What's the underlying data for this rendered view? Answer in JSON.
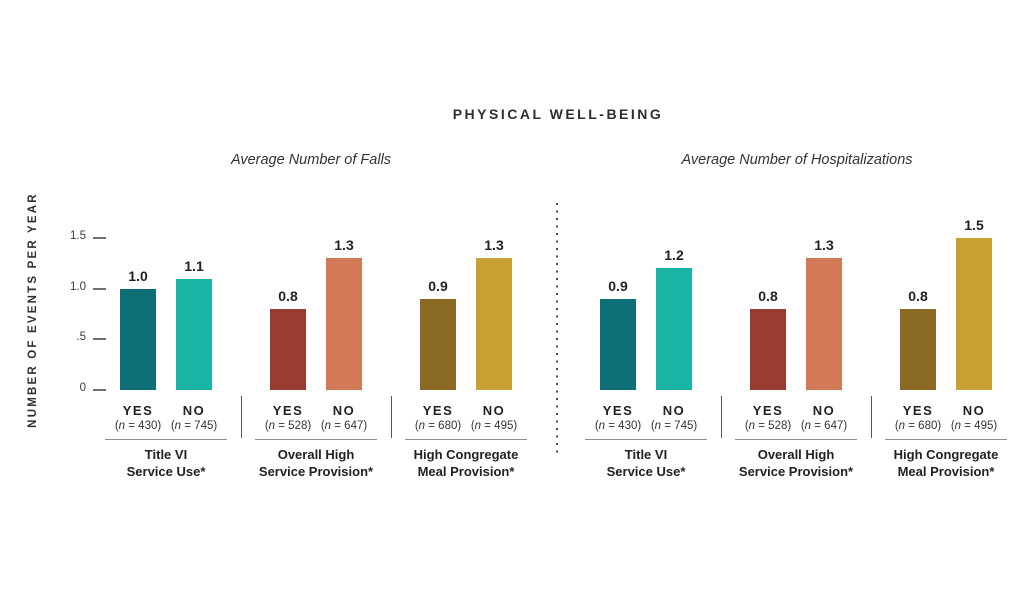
{
  "title": "PHYSICAL WELL-BEING",
  "y_axis": {
    "label": "NUMBER OF EVENTS PER YEAR",
    "ylim": [
      0,
      1.5
    ],
    "ticks": [
      {
        "label": "1.5",
        "value": 1.5
      },
      {
        "label": "1.0",
        "value": 1.0
      },
      {
        "label": ".5",
        "value": 0.5
      },
      {
        "label": "0",
        "value": 0
      }
    ]
  },
  "chart_data": [
    {
      "type": "bar",
      "title": "Average Number of Falls",
      "ylabel": "NUMBER OF EVENTS PER YEAR",
      "ylim": [
        0,
        1.5
      ],
      "grid": false,
      "categories": [
        "Title VI Service Use*",
        "Overall High Service Provision*",
        "High Congregate Meal Provision*"
      ],
      "series": [
        {
          "name": "YES",
          "values": [
            1.0,
            0.8,
            0.9
          ]
        },
        {
          "name": "NO",
          "values": [
            1.1,
            1.3,
            1.3
          ]
        }
      ],
      "groups": [
        {
          "name_lines": [
            "Title VI",
            "Service Use*"
          ],
          "bars": [
            {
              "label": "YES",
              "n_label": "(n = 430)",
              "value": 1.0,
              "value_label": "1.0",
              "color": "#0e7076"
            },
            {
              "label": "NO",
              "n_label": "(n = 745)",
              "value": 1.1,
              "value_label": "1.1",
              "color": "#1ab3a4"
            }
          ]
        },
        {
          "name_lines": [
            "Overall High",
            "Service Provision*"
          ],
          "bars": [
            {
              "label": "YES",
              "n_label": "(n = 528)",
              "value": 0.8,
              "value_label": "0.8",
              "color": "#9a3c31"
            },
            {
              "label": "NO",
              "n_label": "(n = 647)",
              "value": 1.3,
              "value_label": "1.3",
              "color": "#d17a55"
            }
          ]
        },
        {
          "name_lines": [
            "High Congregate",
            "Meal Provision*"
          ],
          "bars": [
            {
              "label": "YES",
              "n_label": "(n = 680)",
              "value": 0.9,
              "value_label": "0.9",
              "color": "#8a6a24"
            },
            {
              "label": "NO",
              "n_label": "(n = 495)",
              "value": 1.3,
              "value_label": "1.3",
              "color": "#c89f33"
            }
          ]
        }
      ]
    },
    {
      "type": "bar",
      "title": "Average Number of Hospitalizations",
      "ylabel": "NUMBER OF EVENTS PER YEAR",
      "ylim": [
        0,
        1.5
      ],
      "grid": false,
      "categories": [
        "Title VI Service Use*",
        "Overall High Service Provision*",
        "High Congregate Meal Provision*"
      ],
      "series": [
        {
          "name": "YES",
          "values": [
            0.9,
            0.8,
            0.8
          ]
        },
        {
          "name": "NO",
          "values": [
            1.2,
            1.3,
            1.5
          ]
        }
      ],
      "groups": [
        {
          "name_lines": [
            "Title VI",
            "Service Use*"
          ],
          "bars": [
            {
              "label": "YES",
              "n_label": "(n = 430)",
              "value": 0.9,
              "value_label": "0.9",
              "color": "#0e7076"
            },
            {
              "label": "NO",
              "n_label": "(n = 745)",
              "value": 1.2,
              "value_label": "1.2",
              "color": "#1ab3a4"
            }
          ]
        },
        {
          "name_lines": [
            "Overall High",
            "Service Provision*"
          ],
          "bars": [
            {
              "label": "YES",
              "n_label": "(n = 528)",
              "value": 0.8,
              "value_label": "0.8",
              "color": "#9a3c31"
            },
            {
              "label": "NO",
              "n_label": "(n = 647)",
              "value": 1.3,
              "value_label": "1.3",
              "color": "#d17a55"
            }
          ]
        },
        {
          "name_lines": [
            "High Congregate",
            "Meal Provision*"
          ],
          "bars": [
            {
              "label": "YES",
              "n_label": "(n = 680)",
              "value": 0.8,
              "value_label": "0.8",
              "color": "#8a6a24"
            },
            {
              "label": "NO",
              "n_label": "(n = 495)",
              "value": 1.5,
              "value_label": "1.5",
              "color": "#c89f33"
            }
          ]
        }
      ]
    }
  ],
  "colors": {
    "background": "#ffffff",
    "text": "#2e2e2e",
    "axis": "#6f6f6f",
    "separator": "#555555",
    "divider": "#4a4a4a",
    "teal_dark": "#0e7076",
    "teal_light": "#1ab3a4",
    "red_dark": "#9a3c31",
    "salmon": "#d17a55",
    "gold_dark": "#8a6a24",
    "gold_light": "#c89f33"
  }
}
